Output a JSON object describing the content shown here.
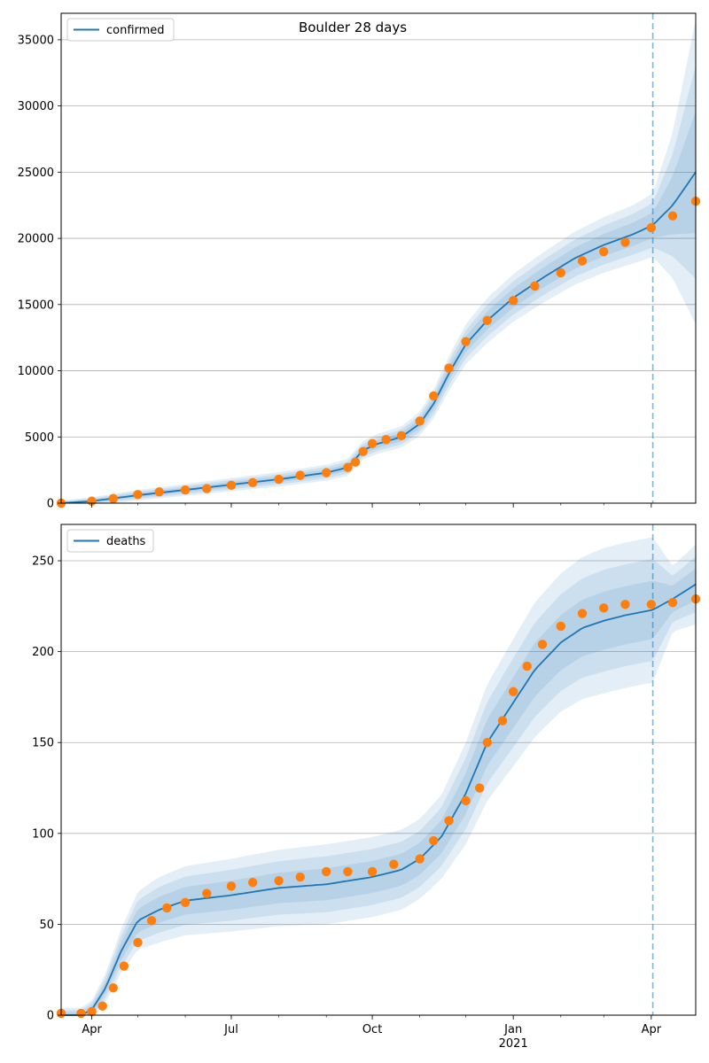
{
  "title": "Boulder 28 days",
  "colors": {
    "model": "#1f77b4",
    "observed": "#ff7f0e",
    "band": "#1f77b4",
    "grid": "#b0b0b0"
  },
  "x_axis": {
    "start": "2020-03-12",
    "end": "2021-04-30",
    "ticks": [
      {
        "date": "2020-04-01",
        "label": "Apr"
      },
      {
        "date": "2020-07-01",
        "label": "Jul"
      },
      {
        "date": "2020-10-01",
        "label": "Oct"
      },
      {
        "date": "2021-01-01",
        "label": "Jan"
      },
      {
        "date": "2021-04-01",
        "label": "Apr"
      }
    ],
    "year_label": "2021",
    "forecast_start": "2021-04-02"
  },
  "chart_data": [
    {
      "type": "line",
      "legend": "confirmed",
      "legend_position": "top-left",
      "grid": "horizontal",
      "ylim": [
        0,
        37000
      ],
      "yticks": [
        0,
        5000,
        10000,
        15000,
        20000,
        25000,
        30000,
        35000
      ],
      "model": {
        "x": [
          "2020-03-12",
          "2020-04-01",
          "2020-05-01",
          "2020-06-01",
          "2020-07-01",
          "2020-08-01",
          "2020-09-01",
          "2020-09-15",
          "2020-09-25",
          "2020-10-05",
          "2020-10-20",
          "2020-11-01",
          "2020-11-10",
          "2020-11-20",
          "2020-12-01",
          "2020-12-15",
          "2021-01-01",
          "2021-01-20",
          "2021-02-10",
          "2021-03-01",
          "2021-03-20",
          "2021-04-02",
          "2021-04-15",
          "2021-04-30"
        ],
        "y": [
          0,
          150,
          600,
          1000,
          1400,
          1800,
          2300,
          2700,
          4000,
          4500,
          5000,
          6000,
          7500,
          9800,
          12000,
          13800,
          15500,
          17000,
          18500,
          19500,
          20300,
          21000,
          22500,
          25000
        ],
        "band_half_width": [
          200,
          300,
          400,
          450,
          500,
          550,
          600,
          650,
          700,
          750,
          800,
          900,
          1100,
          1300,
          1500,
          1700,
          1800,
          1900,
          2000,
          2100,
          2200,
          2400,
          5500,
          11500
        ]
      },
      "observed": {
        "x": [
          "2020-03-12",
          "2020-04-01",
          "2020-04-15",
          "2020-05-01",
          "2020-05-15",
          "2020-06-01",
          "2020-06-15",
          "2020-07-01",
          "2020-07-15",
          "2020-08-01",
          "2020-08-15",
          "2020-09-01",
          "2020-09-15",
          "2020-09-20",
          "2020-09-25",
          "2020-10-01",
          "2020-10-10",
          "2020-10-20",
          "2020-11-01",
          "2020-11-10",
          "2020-11-20",
          "2020-12-01",
          "2020-12-15",
          "2021-01-01",
          "2021-01-15",
          "2021-02-01",
          "2021-02-15",
          "2021-03-01",
          "2021-03-15",
          "2021-04-01",
          "2021-04-15",
          "2021-04-30"
        ],
        "y": [
          0,
          150,
          350,
          650,
          850,
          1000,
          1100,
          1350,
          1550,
          1800,
          2100,
          2300,
          2700,
          3100,
          3900,
          4500,
          4800,
          5100,
          6200,
          8100,
          10200,
          12200,
          13800,
          15300,
          16400,
          17400,
          18300,
          19000,
          19700,
          20800,
          21700,
          22800
        ]
      }
    },
    {
      "type": "line",
      "legend": "deaths",
      "legend_position": "top-left",
      "grid": "horizontal",
      "ylim": [
        0,
        270
      ],
      "yticks": [
        0,
        50,
        100,
        150,
        200,
        250
      ],
      "model": {
        "x": [
          "2020-03-12",
          "2020-03-25",
          "2020-04-01",
          "2020-04-10",
          "2020-04-20",
          "2020-05-01",
          "2020-05-15",
          "2020-06-01",
          "2020-07-01",
          "2020-08-01",
          "2020-09-01",
          "2020-10-01",
          "2020-10-20",
          "2020-11-01",
          "2020-11-15",
          "2020-12-01",
          "2020-12-15",
          "2021-01-01",
          "2021-01-15",
          "2021-02-01",
          "2021-02-15",
          "2021-03-01",
          "2021-03-15",
          "2021-04-02",
          "2021-04-15",
          "2021-04-30"
        ],
        "y": [
          0,
          0,
          3,
          15,
          35,
          52,
          58,
          63,
          66,
          70,
          72,
          76,
          80,
          86,
          98,
          122,
          150,
          172,
          190,
          205,
          213,
          217,
          220,
          223,
          229,
          237
        ],
        "band_half_width": [
          4,
          4,
          5,
          8,
          12,
          16,
          18,
          19,
          20,
          21,
          22,
          22,
          22,
          22,
          23,
          28,
          32,
          35,
          37,
          38,
          39,
          40,
          40,
          40,
          18,
          22
        ]
      },
      "observed": {
        "x": [
          "2020-03-12",
          "2020-03-25",
          "2020-04-01",
          "2020-04-08",
          "2020-04-15",
          "2020-04-22",
          "2020-05-01",
          "2020-05-10",
          "2020-05-20",
          "2020-06-01",
          "2020-06-15",
          "2020-07-01",
          "2020-07-15",
          "2020-08-01",
          "2020-08-15",
          "2020-09-01",
          "2020-09-15",
          "2020-10-01",
          "2020-10-15",
          "2020-11-01",
          "2020-11-10",
          "2020-11-20",
          "2020-12-01",
          "2020-12-10",
          "2020-12-15",
          "2020-12-25",
          "2021-01-01",
          "2021-01-10",
          "2021-01-20",
          "2021-02-01",
          "2021-02-15",
          "2021-03-01",
          "2021-03-15",
          "2021-04-01",
          "2021-04-15",
          "2021-04-30"
        ],
        "y": [
          1,
          1,
          2,
          5,
          15,
          27,
          40,
          52,
          59,
          62,
          67,
          71,
          73,
          74,
          76,
          79,
          79,
          79,
          83,
          86,
          96,
          107,
          118,
          125,
          150,
          162,
          178,
          192,
          204,
          214,
          221,
          224,
          226,
          226,
          227,
          229
        ]
      }
    }
  ]
}
